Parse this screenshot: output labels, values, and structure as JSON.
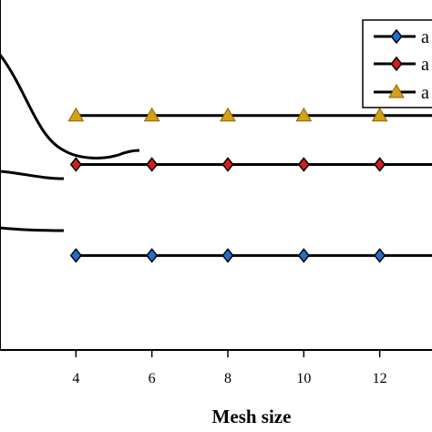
{
  "chart_data": {
    "type": "line",
    "xlabel": "Mesh size",
    "ylabel": "",
    "xlim": [
      2,
      14
    ],
    "ylim": [
      0,
      1
    ],
    "grid": false,
    "legend_position": "top-right",
    "x_ticks": [
      "4",
      "6",
      "8",
      "10",
      "12"
    ],
    "series": [
      {
        "name": "a",
        "marker": "diamond",
        "marker_color": "#1f6fd0",
        "x": [
          4,
          6,
          8,
          10,
          12
        ],
        "values": [
          0.27,
          0.27,
          0.27,
          0.27,
          0.27
        ]
      },
      {
        "name": "a",
        "marker": "diamond",
        "marker_color": "#d01f1f",
        "x": [
          4,
          6,
          8,
          10,
          12
        ],
        "values": [
          0.53,
          0.53,
          0.53,
          0.53,
          0.53
        ]
      },
      {
        "name": "a",
        "marker": "triangle",
        "marker_color": "#d4a017",
        "x": [
          4,
          6,
          8,
          10,
          12
        ],
        "values": [
          0.67,
          0.67,
          0.67,
          0.67,
          0.67
        ]
      }
    ]
  }
}
